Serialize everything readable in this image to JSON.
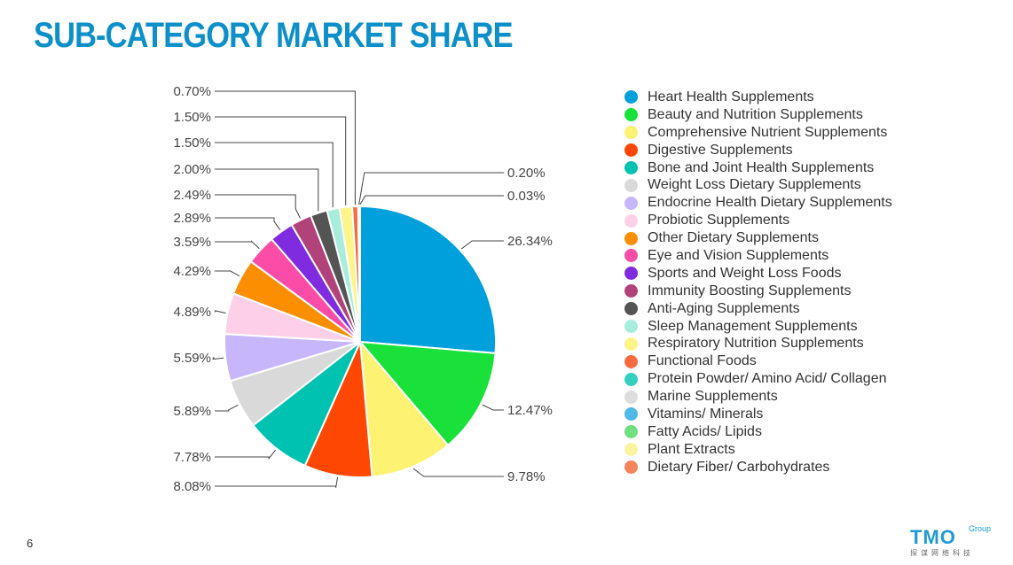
{
  "title": "SUB-CATEGORY MARKET SHARE",
  "page_number": "6",
  "logo": {
    "main": "TMO",
    "group": "Group",
    "chinese": "探谋网络科技"
  },
  "chart_data": {
    "type": "pie",
    "title": "",
    "legend_position": "right",
    "slices": [
      {
        "name": "Heart Health Supplements",
        "value": 26.34,
        "label": "26.34%",
        "color": "#00a0dc"
      },
      {
        "name": "Beauty and Nutrition Supplements",
        "value": 12.47,
        "label": "12.47%",
        "color": "#19e13a"
      },
      {
        "name": "Comprehensive Nutrient Supplements",
        "value": 9.78,
        "label": "9.78%",
        "color": "#fdf271"
      },
      {
        "name": "Digestive Supplements",
        "value": 8.08,
        "label": "8.08%",
        "color": "#fd4702"
      },
      {
        "name": "Bone and Joint Health Supplements",
        "value": 7.78,
        "label": "7.78%",
        "color": "#00c2b1"
      },
      {
        "name": "Weight Loss Dietary Supplements",
        "value": 5.89,
        "label": "5.89%",
        "color": "#d9d9d9"
      },
      {
        "name": "Endocrine Health Dietary Supplements",
        "value": 5.59,
        "label": "5.59%",
        "color": "#c8b6fb"
      },
      {
        "name": "Probiotic Supplements",
        "value": 4.89,
        "label": "4.89%",
        "color": "#fdd0e8"
      },
      {
        "name": "Other Dietary Supplements",
        "value": 4.29,
        "label": "4.29%",
        "color": "#fb8e01"
      },
      {
        "name": "Eye and Vision Supplements",
        "value": 3.59,
        "label": "3.59%",
        "color": "#fb4ca8"
      },
      {
        "name": "Sports and Weight Loss Foods",
        "value": 2.89,
        "label": "2.89%",
        "color": "#7f2ce0"
      },
      {
        "name": "Immunity Boosting Supplements",
        "value": 2.49,
        "label": "2.49%",
        "color": "#b1437a"
      },
      {
        "name": "Anti-Aging Supplements",
        "value": 2.0,
        "label": "2.00%",
        "color": "#545454"
      },
      {
        "name": "Sleep Management Supplements",
        "value": 1.5,
        "label": "1.50%",
        "color": "#a8ecdc"
      },
      {
        "name": "Respiratory Nutrition Supplements",
        "value": 1.5,
        "label": "1.50%",
        "color": "#fdf48a"
      },
      {
        "name": "Functional Foods",
        "value": 0.7,
        "label": "0.70%",
        "color": "#f56c40"
      },
      {
        "name": "Protein Powder/ Amino Acid/ Collagen",
        "value": 0.2,
        "label": "0.20%",
        "color": "#34cfc0"
      },
      {
        "name": "Marine Supplements",
        "value": 0.03,
        "label": "0.03%",
        "color": "#dddddd"
      },
      {
        "name": "Vitamins/ Minerals",
        "value": 0,
        "label": "",
        "color": "#4fb9e6"
      },
      {
        "name": "Fatty Acids/ Lipids",
        "value": 0,
        "label": "",
        "color": "#6fe07f"
      },
      {
        "name": "Plant Extracts",
        "value": 0,
        "label": "",
        "color": "#fbf3a0"
      },
      {
        "name": "Dietary Fiber/ Carbohydrates",
        "value": 0,
        "label": "",
        "color": "#f5845e"
      }
    ]
  }
}
